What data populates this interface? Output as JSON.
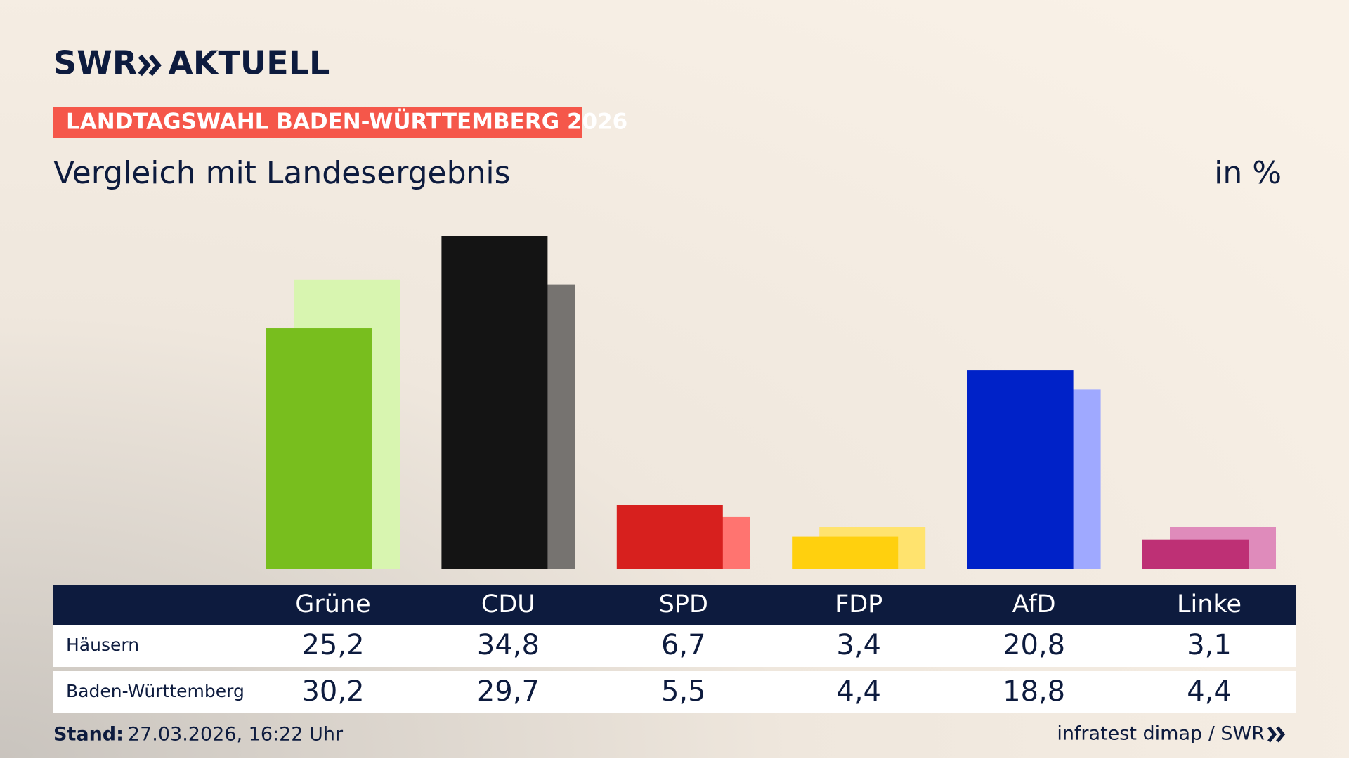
{
  "chart_data": {
    "type": "bar",
    "brand": "SWR",
    "brand_section": "AKTUELL",
    "kicker": "LANDTAGSWAHL BADEN-WÜRTTEMBERG 2026",
    "title": "Vergleich mit Landesergebnis",
    "unit": "in %",
    "categories": [
      "Grüne",
      "CDU",
      "SPD",
      "FDP",
      "AfD",
      "Linke"
    ],
    "series": [
      {
        "name": "Häusern",
        "values": [
          25.2,
          34.8,
          6.7,
          3.4,
          20.8,
          3.1
        ],
        "value_labels": [
          "25,2",
          "34,8",
          "6,7",
          "3,4",
          "20,8",
          "3,1"
        ],
        "colors": [
          "#78be1e",
          "#141414",
          "#d7201e",
          "#ffd00e",
          "#0022c8",
          "#be3075"
        ]
      },
      {
        "name": "Baden-Württemberg",
        "values": [
          30.2,
          29.7,
          5.5,
          4.4,
          18.8,
          4.4
        ],
        "value_labels": [
          "30,2",
          "29,7",
          "5,5",
          "4,4",
          "18,8",
          "4,4"
        ],
        "colors": [
          "#d8f5b0",
          "#767370",
          "#ff7470",
          "#ffe36e",
          "#9fa9ff",
          "#df8bbb"
        ]
      }
    ],
    "footer_label": "Stand:",
    "footer_date": "27.03.2026, 16:22 Uhr",
    "source": "infratest dimap / SWR"
  }
}
